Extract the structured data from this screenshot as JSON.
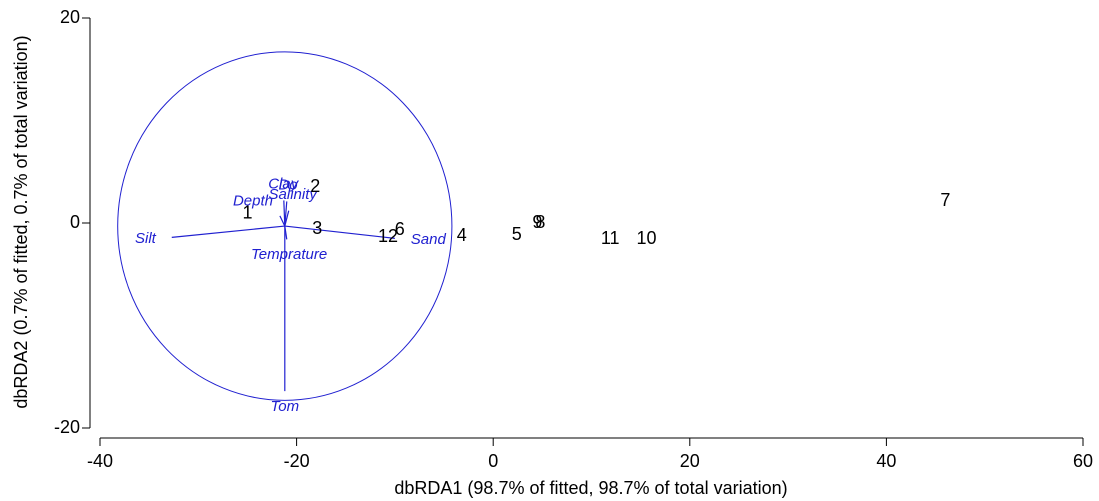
{
  "chart_data": {
    "type": "scatter",
    "xlabel": "dbRDA1 (98.7% of fitted, 98.7% of total variation)",
    "ylabel": "dbRDA2 (0.7% of fitted, 0.7% of total variation)",
    "xlim": [
      -40,
      60
    ],
    "ylim": [
      -20,
      20
    ],
    "xticks": [
      -40,
      -20,
      0,
      20,
      40,
      60
    ],
    "yticks": [
      -20,
      0,
      20
    ],
    "labels": [
      "1",
      "2",
      "3",
      "4",
      "5",
      "6",
      "7",
      "8",
      "9",
      "10",
      "11",
      "12"
    ],
    "x": [
      -25.0,
      -18.1,
      -17.9,
      -3.2,
      2.4,
      -9.5,
      46.0,
      4.8,
      4.5,
      15.6,
      11.9,
      -10.7
    ],
    "y": [
      0.9,
      3.5,
      -0.6,
      -1.3,
      -1.2,
      -0.7,
      2.1,
      0.0,
      0.0,
      -1.6,
      -1.6,
      -1.4
    ],
    "color": "#000000",
    "vector_color": "#2020d0",
    "vector_origin": {
      "x": -21.2,
      "y": -0.3
    },
    "circle_radius": 17,
    "vectors": {
      "names": [
        "Clay",
        "Do",
        "Depth",
        "Salinity",
        "Silt",
        "Temprature",
        "Sand",
        "Tom"
      ],
      "x": [
        -21.3,
        -21.0,
        -21.7,
        -20.8,
        -32.7,
        -21.0,
        -10.0,
        -21.2
      ],
      "y": [
        2.2,
        2.1,
        0.7,
        1.2,
        -1.4,
        -1.6,
        -1.5,
        -16.4
      ]
    }
  }
}
